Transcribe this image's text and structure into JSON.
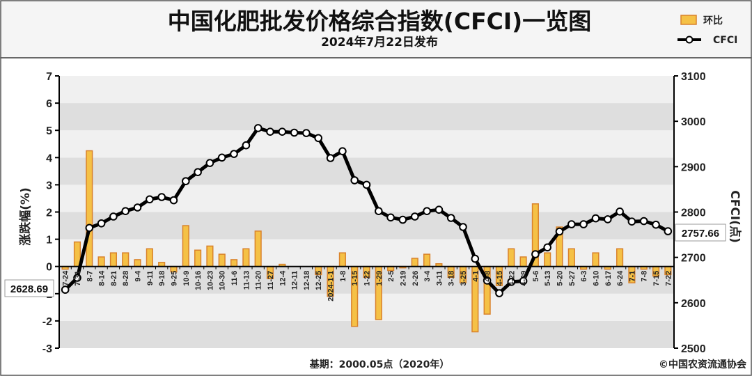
{
  "header": {
    "title": "中国化肥批发价格综合指数(CFCI)一览图",
    "subtitle": "2024年7月22日发布"
  },
  "legend": {
    "bar_label": "环比",
    "line_label": "CFCI"
  },
  "footer": {
    "base_note": "基期：2000.05点（2020年）",
    "copyright": "©中国农资流通协会"
  },
  "callouts": {
    "first": "2628.69",
    "last": "2757.66"
  },
  "colors": {
    "bar_fill": "#f5c146",
    "bar_stroke": "#d9822b",
    "line": "#000000",
    "band_light": "#f0f0f0",
    "band_dark": "#dedede",
    "header_bg": "#f5f5f5"
  },
  "chart_data": {
    "type": "bar+line",
    "ylabel_left": "涨跌幅(%)",
    "ylabel_right": "CFCI(点)",
    "ylim_left": [
      -3,
      7
    ],
    "ylim_right": [
      2500,
      3100
    ],
    "yticks_left": [
      "-3",
      "-2",
      "-1",
      "0",
      "1",
      "2",
      "3",
      "4",
      "5",
      "6",
      "7"
    ],
    "yticks_right": [
      "2500",
      "2600",
      "2700",
      "2800",
      "2900",
      "3000",
      "3100"
    ],
    "categories": [
      "7-24",
      "7-31",
      "8-7",
      "8-14",
      "8-21",
      "8-28",
      "9-4",
      "9-11",
      "9-18",
      "9-25",
      "10-9",
      "10-16",
      "10-23",
      "10-30",
      "11-6",
      "11-13",
      "11-20",
      "11-27",
      "12-4",
      "12-11",
      "12-18",
      "12-25",
      "2024-1-1",
      "1-8",
      "1-15",
      "1-22",
      "1-29",
      "2-5",
      "2-19",
      "2-26",
      "3-4",
      "3-11",
      "3-18",
      "3-25",
      "4-1",
      "4-8",
      "4-15",
      "4-22",
      "4-29",
      "5-6",
      "5-13",
      "5-20",
      "5-27",
      "6-3",
      "6-10",
      "6-17",
      "6-24",
      "7-1",
      "7-8",
      "7-15",
      "7-22"
    ],
    "series": [
      {
        "name": "环比",
        "kind": "bar",
        "values": [
          -0.1,
          0.9,
          4.25,
          0.35,
          0.5,
          0.5,
          0.25,
          0.65,
          0.15,
          -0.2,
          1.5,
          0.6,
          0.75,
          0.45,
          0.25,
          0.65,
          1.3,
          -0.45,
          0.08,
          0.0,
          0.0,
          -0.3,
          -1.1,
          0.5,
          -2.2,
          -0.4,
          -1.95,
          -0.15,
          -0.05,
          0.3,
          0.45,
          0.1,
          -0.4,
          -0.6,
          -2.4,
          -1.75,
          -0.7,
          0.65,
          0.35,
          2.3,
          0.5,
          1.45,
          0.65,
          -0.1,
          0.5,
          -0.1,
          0.65,
          -0.6,
          -0.1,
          -0.35,
          -0.3
        ]
      },
      {
        "name": "CFCI",
        "kind": "line",
        "values": [
          2628.69,
          2655,
          2765,
          2775,
          2790,
          2802,
          2810,
          2828,
          2833,
          2826,
          2868,
          2888,
          2908,
          2920,
          2928,
          2947,
          2985,
          2977,
          2977,
          2975,
          2974,
          2963,
          2919,
          2934,
          2870,
          2860,
          2802,
          2788,
          2783,
          2790,
          2802,
          2805,
          2787,
          2767,
          2697,
          2649,
          2621,
          2646,
          2648,
          2707,
          2722,
          2757,
          2773,
          2773,
          2786,
          2784,
          2801,
          2779,
          2780,
          2772,
          2757.66
        ]
      }
    ]
  }
}
